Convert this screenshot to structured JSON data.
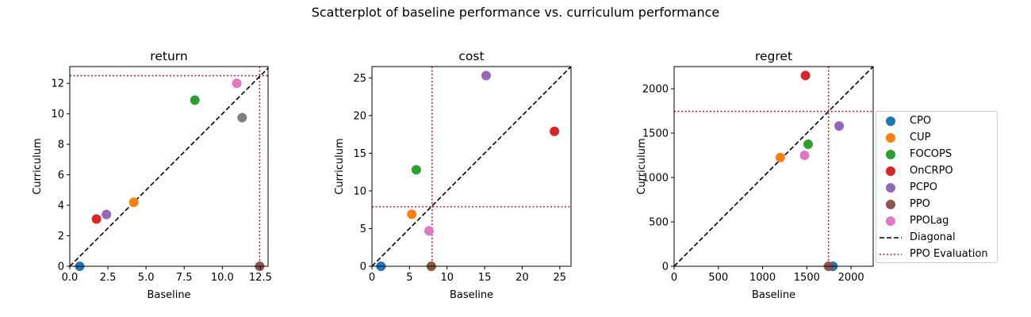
{
  "title": "Scatterplot of baseline performance vs. curriculum performance",
  "legend": [
    {
      "label": "CPO",
      "kind": "point",
      "color": "#1f77b4"
    },
    {
      "label": "CUP",
      "kind": "point",
      "color": "#ff7f0e"
    },
    {
      "label": "FOCOPS",
      "kind": "point",
      "color": "#2ca02c"
    },
    {
      "label": "OnCRPO",
      "kind": "point",
      "color": "#d62728"
    },
    {
      "label": "PCPO",
      "kind": "point",
      "color": "#9467bd"
    },
    {
      "label": "PPO",
      "kind": "point",
      "color": "#8c564b"
    },
    {
      "label": "PPOLag",
      "kind": "point",
      "color": "#e377c2"
    },
    {
      "label": "Diagonal",
      "kind": "dashed",
      "color": "#000000"
    },
    {
      "label": "PPO Evaluation",
      "kind": "dotted",
      "color": "#a52a2a"
    }
  ],
  "chart_data": [
    {
      "type": "scatter",
      "title": "return",
      "xlabel": "Baseline",
      "ylabel": "Curriculum",
      "xlim": [
        0,
        13
      ],
      "ylim": [
        0,
        13.1
      ],
      "xticks": [
        0,
        2.5,
        5,
        7.5,
        10,
        12.5
      ],
      "xticklabels": [
        "0.0",
        "2.5",
        "5.0",
        "7.5",
        "10.0",
        "12.5"
      ],
      "yticks": [
        0,
        2,
        4,
        6,
        8,
        10,
        12
      ],
      "yticklabels": [
        "0",
        "2",
        "4",
        "6",
        "8",
        "10",
        "12"
      ],
      "ppo_evaluation": {
        "x": 12.45,
        "y": 12.5
      },
      "points": [
        {
          "series": "CPO",
          "x": 0.65,
          "y": 0.0,
          "color": "#1f77b4"
        },
        {
          "series": "CUP",
          "x": 4.2,
          "y": 4.2,
          "color": "#ff7f0e"
        },
        {
          "series": "FOCOPS",
          "x": 8.2,
          "y": 10.9,
          "color": "#2ca02c"
        },
        {
          "series": "OnCRPO",
          "x": 1.75,
          "y": 3.1,
          "color": "#d62728"
        },
        {
          "series": "PCPO",
          "x": 2.4,
          "y": 3.4,
          "color": "#9467bd"
        },
        {
          "series": "PPO",
          "x": 12.45,
          "y": 0.0,
          "color": "#8c564b"
        },
        {
          "series": "PPOLag",
          "x": 10.95,
          "y": 12.0,
          "color": "#e377c2"
        },
        {
          "series": "",
          "x": 11.3,
          "y": 9.75,
          "color": "#7f7f7f"
        }
      ]
    },
    {
      "type": "scatter",
      "title": "cost",
      "xlabel": "Baseline",
      "ylabel": "Curriculum",
      "xlim": [
        0,
        26.5
      ],
      "ylim": [
        0,
        26.5
      ],
      "xticks": [
        0,
        5,
        10,
        15,
        20,
        25
      ],
      "xticklabels": [
        "0",
        "5",
        "10",
        "15",
        "20",
        "25"
      ],
      "yticks": [
        0,
        5,
        10,
        15,
        20,
        25
      ],
      "yticklabels": [
        "0",
        "5",
        "10",
        "15",
        "20",
        "25"
      ],
      "ppo_evaluation": {
        "x": 8.0,
        "y": 7.9
      },
      "points": [
        {
          "series": "CPO",
          "x": 1.2,
          "y": 0.0,
          "color": "#1f77b4"
        },
        {
          "series": "CUP",
          "x": 5.3,
          "y": 6.9,
          "color": "#ff7f0e"
        },
        {
          "series": "FOCOPS",
          "x": 5.9,
          "y": 12.8,
          "color": "#2ca02c"
        },
        {
          "series": "OnCRPO",
          "x": 24.3,
          "y": 17.9,
          "color": "#d62728"
        },
        {
          "series": "PCPO",
          "x": 15.2,
          "y": 25.3,
          "color": "#9467bd"
        },
        {
          "series": "PPO",
          "x": 7.9,
          "y": 0.0,
          "color": "#8c564b"
        },
        {
          "series": "PPOLag",
          "x": 7.6,
          "y": 4.7,
          "color": "#e377c2"
        }
      ]
    },
    {
      "type": "scatter",
      "title": "regret",
      "xlabel": "Baseline",
      "ylabel": "Curriculum",
      "xlim": [
        0,
        2250
      ],
      "ylim": [
        0,
        2250
      ],
      "xticks": [
        0,
        500,
        1000,
        1500,
        2000
      ],
      "xticklabels": [
        "0",
        "500",
        "1000",
        "1500",
        "2000"
      ],
      "yticks": [
        0,
        500,
        1000,
        1500,
        2000
      ],
      "yticklabels": [
        "0",
        "500",
        "1000",
        "1500",
        "2000"
      ],
      "ppo_evaluation": {
        "x": 1745,
        "y": 1745
      },
      "points": [
        {
          "series": "CPO",
          "x": 1795,
          "y": 0,
          "color": "#1f77b4"
        },
        {
          "series": "CUP",
          "x": 1200,
          "y": 1225,
          "color": "#ff7f0e"
        },
        {
          "series": "FOCOPS",
          "x": 1515,
          "y": 1375,
          "color": "#2ca02c"
        },
        {
          "series": "OnCRPO",
          "x": 1485,
          "y": 2150,
          "color": "#d62728"
        },
        {
          "series": "PCPO",
          "x": 1865,
          "y": 1580,
          "color": "#9467bd"
        },
        {
          "series": "PPO",
          "x": 1745,
          "y": 0,
          "color": "#8c564b"
        },
        {
          "series": "PPOLag",
          "x": 1475,
          "y": 1250,
          "color": "#e377c2"
        }
      ]
    }
  ]
}
